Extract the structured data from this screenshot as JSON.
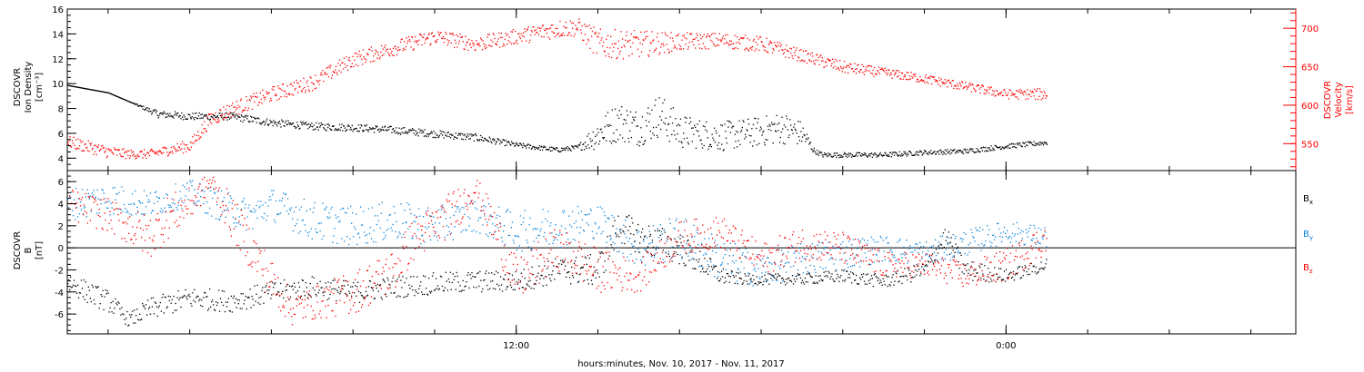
{
  "chart_data": [
    {
      "type": "scatter",
      "panel": "top",
      "ylabel": [
        "DSCOVR",
        "Ion Density",
        "[cm⁻³]"
      ],
      "ylim": [
        3,
        16
      ],
      "yticks": [
        "4",
        "6",
        "8",
        "10",
        "12",
        "14",
        "16"
      ],
      "ylabel_right": [
        "DSCOVR",
        "Velocity",
        "[km/s]"
      ],
      "ylim_right": [
        515,
        725
      ],
      "yticks_right": [
        "550",
        "600",
        "650",
        "700"
      ],
      "x_hours_range": [
        1.0,
        31.1
      ],
      "data_end_hours": 25.0,
      "series": [
        {
          "axis": "left",
          "color": "#000000",
          "x": [
            1.0,
            2.0,
            2.5,
            3.2,
            4.0,
            5.0,
            6.0,
            7.0,
            8.0,
            9.0,
            10.0,
            11.0,
            12.0,
            13.0,
            13.5,
            14.0,
            14.5,
            15.0,
            15.5,
            16.0,
            16.5,
            17.0,
            17.5,
            18.0,
            18.5,
            19.0,
            19.3,
            19.5,
            20.0,
            21.0,
            22.0,
            23.0,
            24.0,
            25.0
          ],
          "y": [
            9.9,
            9.3,
            8.6,
            7.6,
            7.4,
            7.4,
            6.9,
            6.6,
            6.5,
            6.3,
            6.0,
            5.7,
            5.1,
            4.7,
            4.9,
            6.0,
            7.0,
            6.5,
            7.5,
            6.2,
            6.0,
            5.8,
            6.0,
            6.2,
            6.5,
            6.0,
            4.6,
            4.3,
            4.3,
            4.3,
            4.5,
            4.6,
            5.0,
            5.3
          ],
          "scatter": [
            0,
            0,
            0,
            0.3,
            0.3,
            0.3,
            0.3,
            0.3,
            0.3,
            0.3,
            0.3,
            0.3,
            0.2,
            0.2,
            0.2,
            1.3,
            1.6,
            1.5,
            1.8,
            1.4,
            1.2,
            1.2,
            1.2,
            1.2,
            1.3,
            1.0,
            0.2,
            0.2,
            0.2,
            0.2,
            0.2,
            0.2,
            0.2,
            0.2
          ]
        },
        {
          "axis": "right",
          "color": "#ff0000",
          "x": [
            1.0,
            2.0,
            2.5,
            3.0,
            4.0,
            4.5,
            5.0,
            6.0,
            7.0,
            8.0,
            9.0,
            10.0,
            11.0,
            12.0,
            13.0,
            13.5,
            14.0,
            15.0,
            16.0,
            17.0,
            18.0,
            19.0,
            20.0,
            21.0,
            22.0,
            23.0,
            24.0,
            25.0
          ],
          "y": [
            553,
            540,
            537,
            537,
            548,
            583,
            595,
            615,
            630,
            660,
            675,
            690,
            680,
            690,
            700,
            702,
            680,
            680,
            683,
            685,
            680,
            665,
            650,
            643,
            635,
            625,
            615,
            615
          ],
          "scatter": [
            8,
            8,
            6,
            6,
            8,
            10,
            10,
            10,
            10,
            10,
            10,
            10,
            10,
            10,
            12,
            12,
            20,
            18,
            12,
            10,
            10,
            8,
            8,
            6,
            6,
            6,
            6,
            8
          ]
        }
      ]
    },
    {
      "type": "scatter",
      "panel": "bottom",
      "ylabel": [
        "DSCOVR",
        "B",
        "[nT]"
      ],
      "ylim": [
        -7.8,
        7.0
      ],
      "yticks": [
        "-6",
        "-4",
        "-2",
        "0",
        "2",
        "4",
        "6"
      ],
      "x_hours_range": [
        1.0,
        31.1
      ],
      "data_end_hours": 25.0,
      "zero_line": true,
      "legend_placement": "right",
      "series": [
        {
          "name": "Bx",
          "color": "#000000",
          "x": [
            1.0,
            1.5,
            2.0,
            2.5,
            3.0,
            3.5,
            4.0,
            5.0,
            6.0,
            7.0,
            8.0,
            9.0,
            10.0,
            11.0,
            12.0,
            13.0,
            14.0,
            14.5,
            15.0,
            16.0,
            17.0,
            17.5,
            18.0,
            19.0,
            20.0,
            21.0,
            22.0,
            22.5,
            23.0,
            24.0,
            25.0
          ],
          "y": [
            -3.0,
            -4.0,
            -4.8,
            -6.5,
            -5.5,
            -5.0,
            -4.5,
            -4.8,
            -4.0,
            -3.5,
            -4.0,
            -3.5,
            -3.2,
            -3.0,
            -3.0,
            -2.0,
            -2.0,
            2.0,
            1.0,
            0.0,
            -2.5,
            -2.8,
            -2.8,
            -2.8,
            -2.5,
            -3.0,
            -2.0,
            1.0,
            -2.0,
            -2.5,
            -1.5
          ],
          "scatter": [
            1.0,
            1.0,
            1.0,
            0.6,
            1.0,
            1.0,
            1.0,
            1.0,
            1.0,
            1.0,
            1.0,
            1.0,
            1.0,
            1.0,
            1.0,
            1.2,
            1.5,
            1.5,
            1.5,
            1.5,
            0.8,
            0.5,
            0.5,
            0.5,
            0.6,
            0.6,
            0.8,
            1.0,
            1.0,
            0.6,
            0.6
          ]
        },
        {
          "name": "By",
          "color": "#0a84dc",
          "x": [
            1.0,
            2.0,
            3.0,
            4.0,
            5.0,
            5.5,
            6.0,
            7.0,
            8.0,
            9.0,
            10.0,
            11.0,
            12.0,
            13.0,
            14.0,
            15.0,
            16.0,
            17.0,
            18.0,
            19.0,
            20.0,
            21.0,
            22.0,
            23.0,
            24.0,
            25.0
          ],
          "y": [
            4.0,
            4.5,
            4.0,
            5.0,
            3.5,
            3.0,
            4.0,
            2.5,
            2.0,
            2.5,
            2.0,
            3.0,
            1.5,
            2.0,
            2.5,
            0.0,
            1.0,
            -1.0,
            -2.0,
            -1.0,
            -0.5,
            0.0,
            -0.5,
            0.5,
            1.5,
            1.0
          ],
          "scatter": [
            1.5,
            1.5,
            1.2,
            1.2,
            1.5,
            1.5,
            1.5,
            1.8,
            1.8,
            1.8,
            1.8,
            1.5,
            1.8,
            2.0,
            1.5,
            2.0,
            2.0,
            2.0,
            1.5,
            1.5,
            1.5,
            1.2,
            1.2,
            1.2,
            1.0,
            1.0
          ]
        },
        {
          "name": "Bz",
          "color": "#ff0000",
          "x": [
            1.0,
            2.0,
            3.0,
            3.5,
            4.0,
            4.5,
            5.0,
            5.5,
            6.0,
            6.5,
            7.0,
            8.0,
            9.0,
            9.5,
            10.0,
            10.5,
            11.0,
            11.5,
            12.0,
            13.0,
            14.0,
            15.0,
            16.0,
            17.0,
            18.0,
            19.0,
            20.0,
            21.0,
            22.0,
            23.0,
            24.0,
            25.0
          ],
          "y": [
            4.0,
            3.0,
            1.0,
            3.0,
            4.0,
            6.0,
            3.0,
            0.0,
            -3.0,
            -5.5,
            -5.0,
            -4.0,
            -2.0,
            1.0,
            2.0,
            3.5,
            5.5,
            1.5,
            -3.0,
            0.0,
            -2.0,
            -2.5,
            1.0,
            1.5,
            -1.0,
            0.5,
            0.0,
            -1.5,
            -1.5,
            -2.5,
            -1.5,
            1.0
          ],
          "scatter": [
            1.5,
            1.5,
            2.0,
            2.0,
            1.5,
            1.0,
            2.0,
            2.0,
            2.0,
            1.5,
            1.5,
            2.0,
            2.0,
            2.0,
            2.0,
            2.0,
            1.0,
            2.0,
            2.0,
            2.0,
            2.0,
            1.5,
            1.5,
            1.5,
            1.5,
            1.5,
            1.5,
            1.2,
            1.2,
            1.2,
            1.5,
            1.5
          ]
        }
      ]
    }
  ],
  "x_axis": {
    "tick_labels": [
      {
        "hours": 12,
        "label": "12:00"
      },
      {
        "hours": 24,
        "label": "0:00"
      }
    ],
    "minor_tick_every_hours": 2,
    "xlabel": "hours:minutes, Nov. 10, 2017 - Nov. 11, 2017"
  },
  "legend_labels": {
    "Bx": {
      "base": "B",
      "sub": "x"
    },
    "By": {
      "base": "B",
      "sub": "y"
    },
    "Bz": {
      "base": "B",
      "sub": "z"
    }
  }
}
